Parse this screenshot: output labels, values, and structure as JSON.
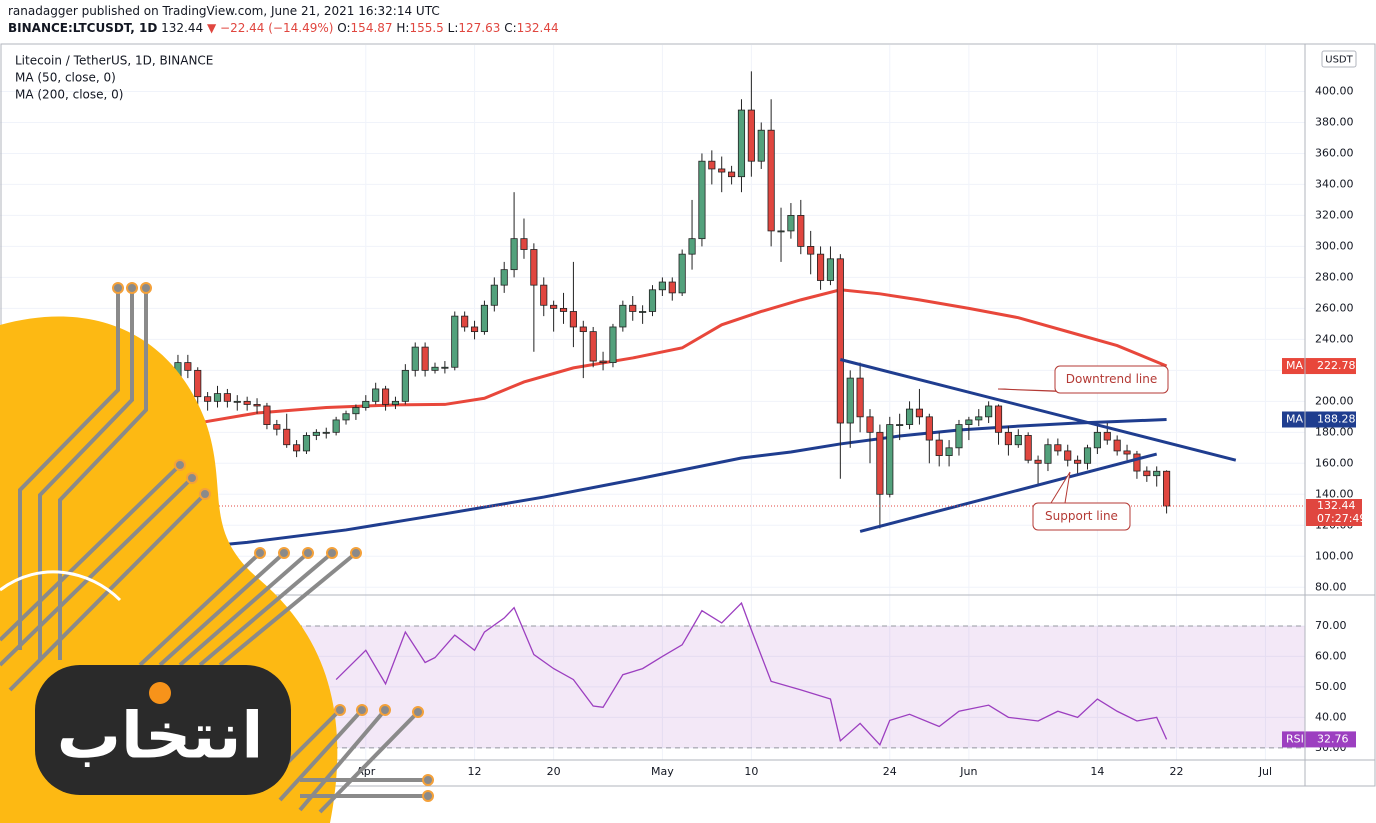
{
  "header": {
    "published": "ranadagger published on TradingView.com, June 21, 2021 16:32:14 UTC",
    "symbol": "BINANCE:LTCUSDT, 1D",
    "change_arrow": "▼",
    "change": "−22.44 (−14.49%)",
    "ohlc_labels": [
      "O:",
      "H:",
      "L:",
      "C:"
    ]
  },
  "watermark": "انتخاب",
  "chart_data": {
    "type": "candlestick",
    "title": "Litecoin / TetherUS, 1D, BINANCE",
    "currency": "USDT",
    "up_color": "#53a17c",
    "down_color": "#e0463f",
    "xlim": [
      "2021-02-23",
      "2021-07-05"
    ],
    "ylim": [
      75,
      430
    ],
    "xticks": [
      {
        "value": "2021-04-01",
        "label": "Apr"
      },
      {
        "value": "2021-04-12",
        "label": "12"
      },
      {
        "value": "2021-04-20",
        "label": "20"
      },
      {
        "value": "2021-05-01",
        "label": "May"
      },
      {
        "value": "2021-05-10",
        "label": "10"
      },
      {
        "value": "2021-05-24",
        "label": "24"
      },
      {
        "value": "2021-06-01",
        "label": "Jun"
      },
      {
        "value": "2021-06-14",
        "label": "14"
      },
      {
        "value": "2021-06-22",
        "label": "22"
      },
      {
        "value": "2021-07-01",
        "label": "Jul"
      }
    ],
    "yticks": [
      {
        "value": 80,
        "label": "80.00"
      },
      {
        "value": 100,
        "label": "100.00"
      },
      {
        "value": 120,
        "label": "120.00"
      },
      {
        "value": 140,
        "label": "140.00"
      },
      {
        "value": 160,
        "label": "160.00"
      },
      {
        "value": 180,
        "label": "180.00"
      },
      {
        "value": 200,
        "label": "200.00"
      },
      {
        "value": 220,
        "label": "220.00"
      },
      {
        "value": 240,
        "label": "240.00"
      },
      {
        "value": 260,
        "label": "260.00"
      },
      {
        "value": 280,
        "label": "280.00"
      },
      {
        "value": 300,
        "label": "300.00"
      },
      {
        "value": 320,
        "label": "320.00"
      },
      {
        "value": 340,
        "label": "340.00"
      },
      {
        "value": 360,
        "label": "360.00"
      },
      {
        "value": 380,
        "label": "380.00"
      },
      {
        "value": 400,
        "label": "400.00"
      }
    ],
    "countdown": "07:27:49",
    "dates": [
      "2021-03-11",
      "2021-03-12",
      "2021-03-13",
      "2021-03-14",
      "2021-03-15",
      "2021-03-16",
      "2021-03-17",
      "2021-03-18",
      "2021-03-19",
      "2021-03-20",
      "2021-03-21",
      "2021-03-22",
      "2021-03-23",
      "2021-03-24",
      "2021-03-25",
      "2021-03-26",
      "2021-03-27",
      "2021-03-28",
      "2021-03-29",
      "2021-03-30",
      "2021-03-31",
      "2021-04-01",
      "2021-04-02",
      "2021-04-03",
      "2021-04-04",
      "2021-04-05",
      "2021-04-06",
      "2021-04-07",
      "2021-04-08",
      "2021-04-09",
      "2021-04-10",
      "2021-04-11",
      "2021-04-12",
      "2021-04-13",
      "2021-04-14",
      "2021-04-15",
      "2021-04-16",
      "2021-04-17",
      "2021-04-18",
      "2021-04-19",
      "2021-04-20",
      "2021-04-21",
      "2021-04-22",
      "2021-04-23",
      "2021-04-24",
      "2021-04-25",
      "2021-04-26",
      "2021-04-27",
      "2021-04-28",
      "2021-04-29",
      "2021-04-30",
      "2021-05-01",
      "2021-05-02",
      "2021-05-03",
      "2021-05-04",
      "2021-05-05",
      "2021-05-06",
      "2021-05-07",
      "2021-05-08",
      "2021-05-09",
      "2021-05-10",
      "2021-05-11",
      "2021-05-12",
      "2021-05-13",
      "2021-05-14",
      "2021-05-15",
      "2021-05-16",
      "2021-05-17",
      "2021-05-18",
      "2021-05-19",
      "2021-05-20",
      "2021-05-21",
      "2021-05-22",
      "2021-05-23",
      "2021-05-24",
      "2021-05-25",
      "2021-05-26",
      "2021-05-27",
      "2021-05-28",
      "2021-05-29",
      "2021-05-30",
      "2021-05-31",
      "2021-06-01",
      "2021-06-02",
      "2021-06-03",
      "2021-06-04",
      "2021-06-05",
      "2021-06-06",
      "2021-06-07",
      "2021-06-08",
      "2021-06-09",
      "2021-06-10",
      "2021-06-11",
      "2021-06-12",
      "2021-06-13",
      "2021-06-14",
      "2021-06-15",
      "2021-06-16",
      "2021-06-17",
      "2021-06-18",
      "2021-06-19",
      "2021-06-20",
      "2021-06-21"
    ],
    "candles": [
      [
        190,
        200,
        186,
        195
      ],
      [
        195,
        222,
        192,
        215
      ],
      [
        215,
        230,
        210,
        225
      ],
      [
        225,
        230,
        215,
        220
      ],
      [
        220,
        222,
        198,
        203
      ],
      [
        203,
        206,
        194,
        200
      ],
      [
        200,
        210,
        196,
        205
      ],
      [
        205,
        208,
        196,
        200
      ],
      [
        200,
        204,
        194,
        200
      ],
      [
        200,
        203,
        194,
        198
      ],
      [
        198,
        202,
        192,
        197
      ],
      [
        197,
        199,
        182,
        185
      ],
      [
        185,
        188,
        178,
        182
      ],
      [
        182,
        192,
        170,
        172
      ],
      [
        172,
        175,
        164,
        168
      ],
      [
        168,
        180,
        166,
        178
      ],
      [
        178,
        182,
        175,
        180
      ],
      [
        180,
        183,
        176,
        180
      ],
      [
        180,
        190,
        178,
        188
      ],
      [
        188,
        194,
        185,
        192
      ],
      [
        192,
        198,
        188,
        196
      ],
      [
        196,
        204,
        194,
        200
      ],
      [
        200,
        212,
        198,
        208
      ],
      [
        208,
        210,
        194,
        198
      ],
      [
        198,
        203,
        195,
        200
      ],
      [
        200,
        224,
        198,
        220
      ],
      [
        220,
        238,
        216,
        235
      ],
      [
        235,
        238,
        216,
        220
      ],
      [
        220,
        225,
        218,
        222
      ],
      [
        222,
        226,
        218,
        222
      ],
      [
        222,
        258,
        220,
        255
      ],
      [
        255,
        258,
        245,
        248
      ],
      [
        248,
        252,
        240,
        245
      ],
      [
        245,
        265,
        243,
        262
      ],
      [
        262,
        280,
        258,
        275
      ],
      [
        275,
        290,
        270,
        285
      ],
      [
        285,
        335,
        280,
        305
      ],
      [
        305,
        318,
        292,
        298
      ],
      [
        298,
        302,
        232,
        275
      ],
      [
        275,
        280,
        255,
        262
      ],
      [
        262,
        265,
        245,
        260
      ],
      [
        260,
        270,
        250,
        258
      ],
      [
        258,
        290,
        235,
        248
      ],
      [
        248,
        252,
        215,
        245
      ],
      [
        245,
        248,
        222,
        226
      ],
      [
        226,
        232,
        220,
        225
      ],
      [
        225,
        250,
        222,
        248
      ],
      [
        248,
        265,
        245,
        262
      ],
      [
        262,
        268,
        252,
        258
      ],
      [
        258,
        262,
        250,
        258
      ],
      [
        258,
        275,
        255,
        272
      ],
      [
        272,
        280,
        268,
        277
      ],
      [
        277,
        280,
        265,
        270
      ],
      [
        270,
        298,
        268,
        295
      ],
      [
        295,
        330,
        285,
        305
      ],
      [
        305,
        360,
        300,
        355
      ],
      [
        355,
        362,
        340,
        350
      ],
      [
        350,
        358,
        335,
        348
      ],
      [
        348,
        352,
        340,
        345
      ],
      [
        345,
        395,
        335,
        388
      ],
      [
        388,
        413,
        345,
        355
      ],
      [
        355,
        380,
        350,
        375
      ],
      [
        375,
        395,
        300,
        310
      ],
      [
        310,
        325,
        290,
        310
      ],
      [
        310,
        328,
        305,
        320
      ],
      [
        320,
        330,
        295,
        300
      ],
      [
        300,
        310,
        282,
        295
      ],
      [
        295,
        300,
        272,
        278
      ],
      [
        278,
        300,
        275,
        292
      ],
      [
        292,
        295,
        150,
        186
      ],
      [
        186,
        220,
        170,
        215
      ],
      [
        215,
        225,
        180,
        190
      ],
      [
        190,
        195,
        160,
        180
      ],
      [
        180,
        185,
        118,
        140
      ],
      [
        140,
        190,
        138,
        185
      ],
      [
        185,
        192,
        175,
        185
      ],
      [
        185,
        200,
        182,
        195
      ],
      [
        195,
        208,
        185,
        190
      ],
      [
        190,
        192,
        160,
        175
      ],
      [
        175,
        180,
        158,
        165
      ],
      [
        165,
        175,
        158,
        170
      ],
      [
        170,
        188,
        165,
        185
      ],
      [
        185,
        190,
        175,
        188
      ],
      [
        188,
        195,
        184,
        190
      ],
      [
        190,
        200,
        186,
        197
      ],
      [
        197,
        198,
        172,
        180
      ],
      [
        180,
        184,
        165,
        172
      ],
      [
        172,
        182,
        170,
        178
      ],
      [
        178,
        180,
        160,
        162
      ],
      [
        162,
        165,
        145,
        160
      ],
      [
        160,
        176,
        155,
        172
      ],
      [
        172,
        176,
        165,
        168
      ],
      [
        168,
        172,
        158,
        162
      ],
      [
        162,
        165,
        152,
        160
      ],
      [
        160,
        172,
        156,
        170
      ],
      [
        170,
        184,
        166,
        180
      ],
      [
        180,
        186,
        172,
        175
      ],
      [
        175,
        178,
        165,
        168
      ],
      [
        168,
        172,
        162,
        166
      ],
      [
        166,
        168,
        150,
        155
      ],
      [
        155,
        158,
        148,
        152
      ],
      [
        152,
        158,
        145,
        154.87
      ],
      [
        154.87,
        155.5,
        127.63,
        132.44
      ]
    ],
    "series": [
      {
        "name": "MA (50, close, 0)",
        "tag": "MA",
        "color": "#e8473b",
        "x": [
          "2021-03-10",
          "2021-03-15",
          "2021-03-21",
          "2021-03-28",
          "2021-04-04",
          "2021-04-09",
          "2021-04-13",
          "2021-04-17",
          "2021-04-22",
          "2021-04-28",
          "2021-05-03",
          "2021-05-07",
          "2021-05-11",
          "2021-05-15",
          "2021-05-19",
          "2021-05-23",
          "2021-05-27",
          "2021-06-01",
          "2021-06-06",
          "2021-06-11",
          "2021-06-16",
          "2021-06-21"
        ],
        "values": [
          177,
          186,
          192.5,
          196,
          197.7,
          198,
          202,
          212.5,
          221.6,
          228,
          234.5,
          249.4,
          258,
          265.5,
          272,
          269.4,
          265.5,
          260,
          254,
          245,
          236,
          222.78
        ]
      },
      {
        "name": "MA (200, close, 0)",
        "tag": "MA",
        "color": "#1f3d8f",
        "x": [
          "2021-03-10",
          "2021-03-20",
          "2021-03-30",
          "2021-04-09",
          "2021-04-19",
          "2021-04-29",
          "2021-05-09",
          "2021-05-14",
          "2021-05-19",
          "2021-05-25",
          "2021-05-31",
          "2021-06-06",
          "2021-06-12",
          "2021-06-16",
          "2021-06-21"
        ],
        "values": [
          103,
          109,
          117,
          127.4,
          138.2,
          150.5,
          163.4,
          167.3,
          172.5,
          177.6,
          181.5,
          184,
          186,
          187,
          188.28
        ]
      }
    ],
    "drawings": [
      {
        "label": "Downtrend line",
        "color": "#1f3d8f",
        "points": [
          [
            "2021-05-19",
            227
          ],
          [
            "2021-06-28",
            162
          ]
        ]
      },
      {
        "label": "Support line",
        "color": "#1f3d8f",
        "points": [
          [
            "2021-05-21",
            116
          ],
          [
            "2021-06-20",
            166
          ]
        ]
      }
    ],
    "rsi": {
      "name": "RSI",
      "color": "#9c3fc0",
      "band": [
        30,
        70
      ],
      "ylim": [
        26,
        79.5
      ],
      "yticks": [
        {
          "value": 30,
          "label": "30.00"
        },
        {
          "value": 40,
          "label": "40.00"
        },
        {
          "value": 50,
          "label": "50.00"
        },
        {
          "value": 60,
          "label": "60.00"
        },
        {
          "value": 70,
          "label": "70.00"
        }
      ],
      "x": [
        "2021-03-29",
        "2021-04-01",
        "2021-04-03",
        "2021-04-05",
        "2021-04-07",
        "2021-04-08",
        "2021-04-10",
        "2021-04-12",
        "2021-04-13",
        "2021-04-15",
        "2021-04-16",
        "2021-04-18",
        "2021-04-20",
        "2021-04-22",
        "2021-04-24",
        "2021-04-25",
        "2021-04-27",
        "2021-04-29",
        "2021-05-01",
        "2021-05-03",
        "2021-05-05",
        "2021-05-07",
        "2021-05-09",
        "2021-05-10",
        "2021-05-12",
        "2021-05-15",
        "2021-05-18",
        "2021-05-19",
        "2021-05-21",
        "2021-05-23",
        "2021-05-24",
        "2021-05-26",
        "2021-05-29",
        "2021-05-31",
        "2021-06-03",
        "2021-06-05",
        "2021-06-08",
        "2021-06-10",
        "2021-06-12",
        "2021-06-14",
        "2021-06-16",
        "2021-06-18",
        "2021-06-20",
        "2021-06-21"
      ],
      "values": [
        52.4,
        62,
        51,
        68,
        58,
        59.6,
        67,
        62,
        68,
        72.6,
        76,
        60.6,
        56,
        52.4,
        43.7,
        43.3,
        54,
        56,
        60,
        63.8,
        75,
        71,
        77.5,
        68.7,
        51.8,
        49,
        46,
        32.3,
        38,
        31,
        39,
        41,
        37,
        42,
        44,
        40,
        38.8,
        42,
        40,
        46,
        42,
        38.8,
        40,
        32.76
      ]
    }
  }
}
